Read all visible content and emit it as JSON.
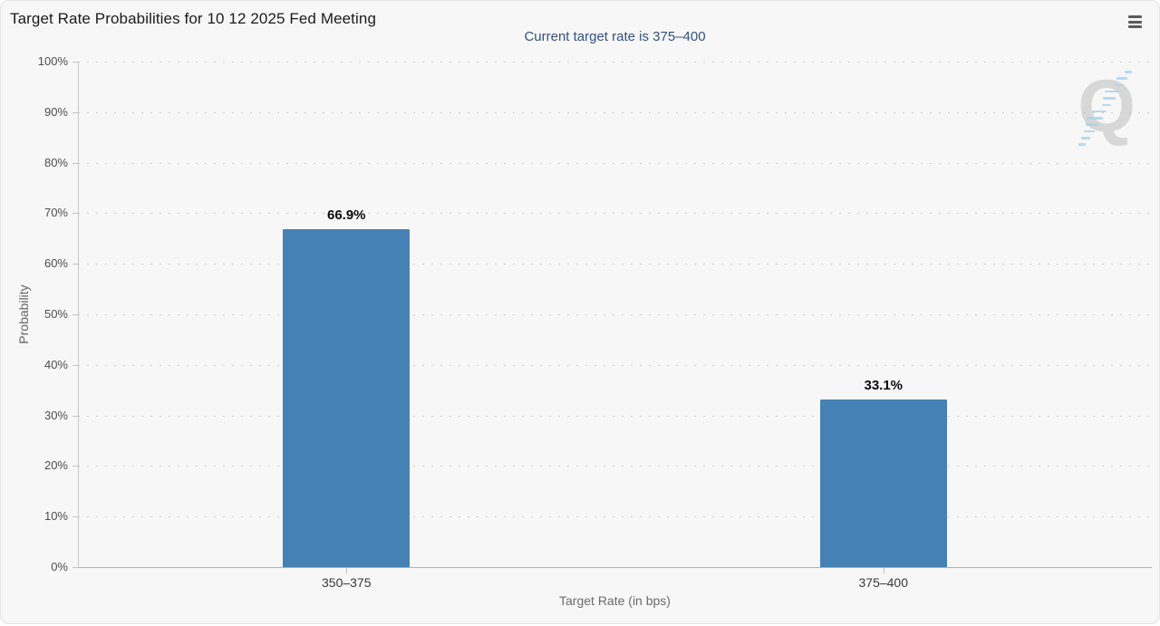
{
  "header": {
    "menu_icon": "hamburger-menu-icon"
  },
  "chart_data": {
    "type": "bar",
    "title": "Target Rate Probabilities for 10 12 2025 Fed Meeting",
    "subtitle": "Current target rate is 375–400",
    "categories": [
      "350–375",
      "375–400"
    ],
    "values": [
      66.9,
      33.1
    ],
    "value_labels": [
      "66.9%",
      "33.1%"
    ],
    "xlabel": "Target Rate (in bps)",
    "ylabel": "Probability",
    "ylim": [
      0,
      100
    ],
    "ytick_step": 10,
    "ytick_suffix": "%",
    "grid": "horizontal dotted",
    "legend": "none",
    "bar_color": "#4681b5",
    "subtitle_color": "#33517e",
    "background_color": "#f7f7f7"
  },
  "watermark": {
    "letter": "Q"
  }
}
